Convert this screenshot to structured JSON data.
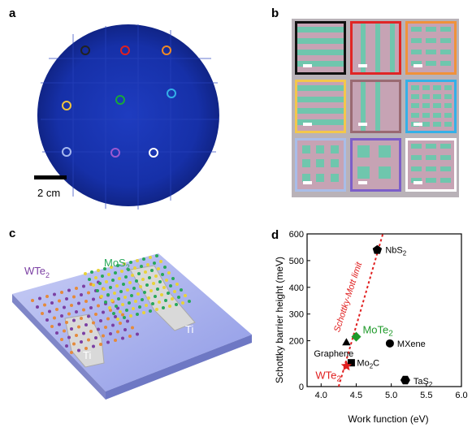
{
  "panels": {
    "a": "a",
    "b": "b",
    "c": "c",
    "d": "d"
  },
  "wafer": {
    "scale_label": "2 cm",
    "marker_colors": [
      "#222222",
      "#e02020",
      "#f08a24",
      "#f2c53d",
      "#18a83a",
      "#33b0e8",
      "#a6b8ef",
      "#9b59d0",
      "#ffffff"
    ]
  },
  "tile_borders": [
    "#111111",
    "#e02525",
    "#f0923a",
    "#f3c74c",
    "#9a6a72",
    "#34b0e7",
    "#a9bde8",
    "#7c5ec9",
    "#ffffff"
  ],
  "device": {
    "label_wte2": "WTe",
    "label_wte2_sub": "2",
    "label_mos2": "MoS",
    "label_mos2_sub": "2",
    "label_ti_left": "Ti",
    "label_ti_right": "Ti",
    "colors": {
      "substrate": "#9aa4e8",
      "wte2": "#7b3fa3",
      "mos2": "#28a85a"
    }
  },
  "chart_data": {
    "type": "scatter",
    "xlabel": "Work function (eV)",
    "ylabel": "Schottky barrier height (meV)",
    "xlim": [
      3.8,
      6.0
    ],
    "ylim": [
      0,
      600
    ],
    "xticks": [
      "4.0",
      "4.5",
      "5.0",
      "5.5",
      "6.0"
    ],
    "yticks": [
      "0",
      "200",
      "300",
      "400",
      "500",
      "600"
    ],
    "trend_label": "Schottky-Mott limit",
    "points": [
      {
        "label": "NbS",
        "sub": "2",
        "x": 4.8,
        "y": 540,
        "marker": "pentagon",
        "color": "#000000"
      },
      {
        "label": "MoTe",
        "sub": "2",
        "x": 4.5,
        "y": 215,
        "marker": "diamond",
        "color": "#1f9a2a"
      },
      {
        "label": "MXene",
        "sub": "",
        "x": 4.98,
        "y": 190,
        "marker": "circle",
        "color": "#000000"
      },
      {
        "label": "Graphene",
        "sub": "",
        "x": 4.36,
        "y": 195,
        "marker": "triangle",
        "color": "#000000"
      },
      {
        "label": "Mo",
        "sub": "2",
        "x": 4.43,
        "y": 110,
        "marker": "square",
        "color": "#000000",
        "suffix": "C"
      },
      {
        "label": "WTe",
        "sub": "2",
        "x": 4.36,
        "y": 95,
        "marker": "star",
        "color": "#e01f1f"
      },
      {
        "label": "TaS",
        "sub": "2",
        "x": 5.2,
        "y": 30,
        "marker": "hexagon",
        "color": "#000000"
      }
    ]
  }
}
